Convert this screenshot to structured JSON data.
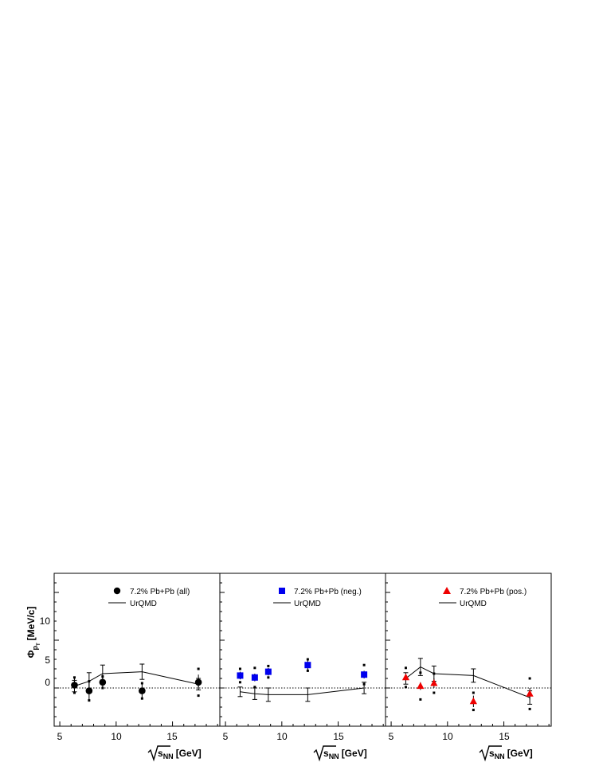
{
  "y_axis_label": "Φ",
  "y_axis_label_sub": "p",
  "y_axis_label_subsub": "T",
  "y_axis_label_unit": "[MeV/c]",
  "y_ticks": [
    "10",
    "5",
    "0"
  ],
  "x_axis_label_var": "s",
  "x_axis_label_sub": "NN",
  "x_axis_label_unit": "[GeV]",
  "x_ticks": [
    "5",
    "10",
    "15"
  ],
  "legend_model": "UrQMD",
  "chart_data": [
    {
      "type": "scatter",
      "xlim": [
        4.5,
        19.2
      ],
      "ylim": [
        -4,
        12
      ],
      "grid": false,
      "reference_line": 0,
      "legend_position": "top-right",
      "series": [
        {
          "name": "7.2% Pb+Pb (all)",
          "marker": "circle",
          "color": "#000000",
          "x": [
            6.3,
            7.6,
            8.8,
            12.3,
            17.3
          ],
          "y": [
            0.3,
            -0.3,
            0.6,
            -0.3,
            0.6
          ],
          "err_stat": [
            0.8,
            0.9,
            0.7,
            0.8,
            0.8
          ],
          "err_sys": [
            0.8,
            1.0,
            0.6,
            0.8,
            1.4
          ]
        },
        {
          "name": "UrQMD",
          "marker": "line",
          "color": "#000000",
          "x": [
            6.3,
            7.6,
            8.8,
            12.3,
            17.3
          ],
          "y": [
            0.2,
            0.7,
            1.5,
            1.7,
            0.4
          ],
          "err_stat": [
            0.6,
            0.9,
            0.9,
            0.8,
            0.6
          ]
        }
      ]
    },
    {
      "type": "scatter",
      "xlim": [
        4.5,
        19.2
      ],
      "ylim": [
        -4,
        12
      ],
      "grid": false,
      "reference_line": 0,
      "legend_position": "top-right",
      "series": [
        {
          "name": "7.2% Pb+Pb (neg.)",
          "marker": "square",
          "color": "#0000ee",
          "x": [
            6.3,
            7.6,
            8.8,
            12.3,
            17.3
          ],
          "y": [
            1.3,
            1.1,
            1.7,
            2.4,
            1.4
          ],
          "err_stat": [
            0.4,
            0.4,
            0.4,
            0.5,
            0.4
          ],
          "err_sys": [
            0.7,
            1.0,
            0.6,
            0.6,
            1.0
          ]
        },
        {
          "name": "UrQMD",
          "marker": "line",
          "color": "#000000",
          "x": [
            6.3,
            7.6,
            8.8,
            12.3,
            17.3
          ],
          "y": [
            -0.4,
            -0.6,
            -0.7,
            -0.7,
            0.0
          ],
          "err_stat": [
            0.5,
            0.6,
            0.7,
            0.7,
            0.6
          ]
        }
      ]
    },
    {
      "type": "scatter",
      "xlim": [
        4.5,
        19.2
      ],
      "ylim": [
        -4,
        12
      ],
      "grid": false,
      "reference_line": 0,
      "legend_position": "top-right",
      "series": [
        {
          "name": "7.2% Pb+Pb (pos.)",
          "marker": "triangle",
          "color": "#ee0000",
          "x": [
            6.3,
            7.6,
            8.8,
            12.3,
            17.3
          ],
          "y": [
            1.1,
            0.2,
            0.5,
            -1.4,
            -0.6
          ],
          "err_stat": [
            0.5,
            0.4,
            0.5,
            0.6,
            0.6
          ],
          "err_sys": [
            1.0,
            1.4,
            1.0,
            0.9,
            1.6
          ]
        },
        {
          "name": "UrQMD",
          "marker": "line",
          "color": "#000000",
          "x": [
            6.3,
            7.6,
            8.8,
            12.3,
            17.3
          ],
          "y": [
            1.0,
            2.2,
            1.5,
            1.3,
            -1.0
          ],
          "err_stat": [
            0.6,
            0.9,
            0.8,
            0.7,
            0.7
          ]
        }
      ]
    }
  ]
}
